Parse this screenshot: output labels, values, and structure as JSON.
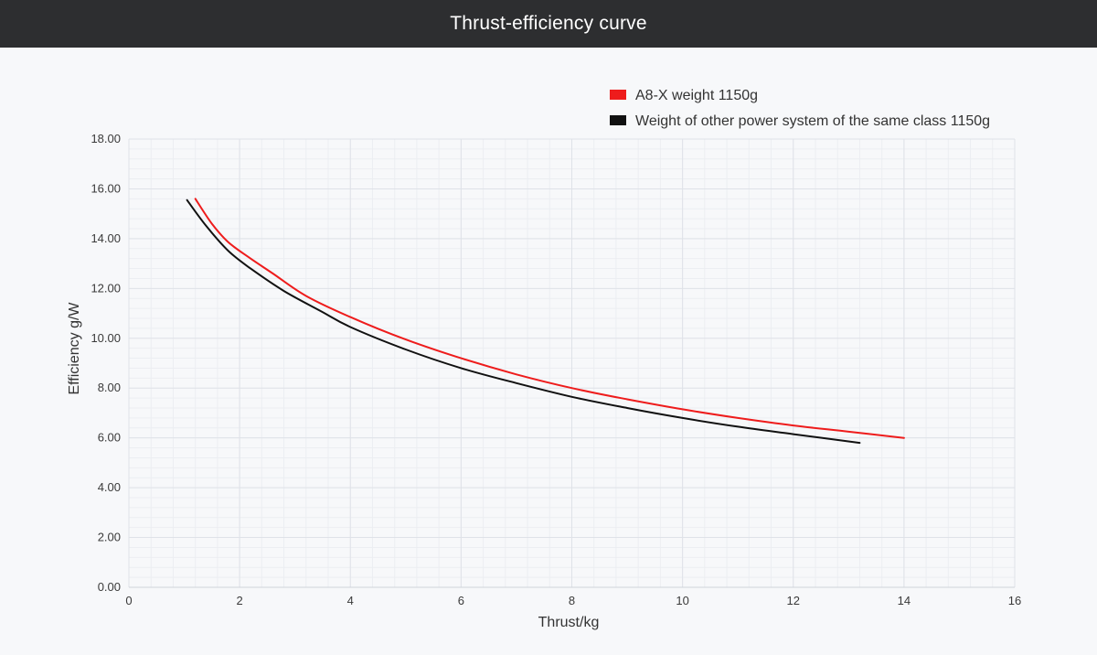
{
  "header": {
    "title": "Thrust-efficiency curve"
  },
  "chart_data": {
    "type": "line",
    "title": "Thrust-efficiency curve",
    "xlabel": "Thrust/kg",
    "ylabel": "Efficiency g/W",
    "xlim": [
      0,
      16
    ],
    "ylim": [
      0,
      18
    ],
    "x_ticks": [
      "0",
      "2",
      "4",
      "6",
      "8",
      "10",
      "12",
      "14",
      "16"
    ],
    "y_ticks": [
      "0.00",
      "2.00",
      "4.00",
      "6.00",
      "8.00",
      "10.00",
      "12.00",
      "14.00",
      "16.00",
      "18.00"
    ],
    "grid": true,
    "legend_position": "top-right",
    "series": [
      {
        "name": "A8-X weight 1150g",
        "color": "#ee1c1c",
        "points": [
          [
            1.2,
            15.6
          ],
          [
            1.5,
            14.6
          ],
          [
            1.8,
            13.85
          ],
          [
            2.2,
            13.2
          ],
          [
            2.6,
            12.6
          ],
          [
            3.2,
            11.7
          ],
          [
            4.0,
            10.85
          ],
          [
            5.0,
            9.95
          ],
          [
            6.0,
            9.2
          ],
          [
            7.0,
            8.55
          ],
          [
            8.0,
            8.0
          ],
          [
            9.0,
            7.55
          ],
          [
            10.0,
            7.15
          ],
          [
            11.0,
            6.8
          ],
          [
            12.0,
            6.5
          ],
          [
            13.0,
            6.25
          ],
          [
            14.0,
            6.0
          ]
        ]
      },
      {
        "name": "Weight of other power system of the same class 1150g",
        "color": "#111111",
        "points": [
          [
            1.05,
            15.55
          ],
          [
            1.4,
            14.5
          ],
          [
            1.8,
            13.5
          ],
          [
            2.2,
            12.8
          ],
          [
            2.8,
            11.9
          ],
          [
            3.5,
            11.05
          ],
          [
            4.0,
            10.45
          ],
          [
            5.0,
            9.55
          ],
          [
            6.0,
            8.8
          ],
          [
            7.0,
            8.2
          ],
          [
            8.0,
            7.65
          ],
          [
            9.0,
            7.2
          ],
          [
            10.0,
            6.8
          ],
          [
            11.0,
            6.45
          ],
          [
            12.0,
            6.15
          ],
          [
            13.2,
            5.8
          ]
        ]
      }
    ]
  }
}
